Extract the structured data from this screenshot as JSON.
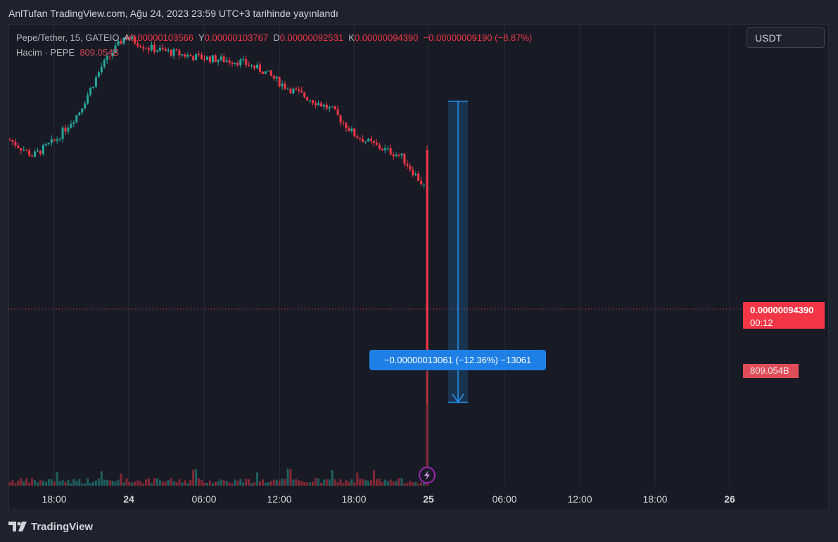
{
  "header": {
    "published_text": "AnlTufan TradingView.com, Ağu 24, 2023 23:59 UTC+3 tarihinde yayınlandı"
  },
  "legend": {
    "symbol": "Pepe/Tether, 15, GATEIO",
    "open_label": "A",
    "open_value": "0.00000103566",
    "high_label": "Y",
    "high_value": "0.00000103767",
    "low_label": "D",
    "low_value": "0.00000092531",
    "close_label": "K",
    "close_value": "0.00000094390",
    "change": "−0.00000009190 (−8.87%)",
    "volume_label": "Hacim · PEPE",
    "volume_value": "809.054B"
  },
  "currency_selector": "USDT",
  "price_tag": {
    "price": "0.00000094390",
    "countdown": "00:12"
  },
  "volume_tag": "809.054B",
  "measure_label": "−0.00000013061 (−12.36%) −13061",
  "brand": "TradingView",
  "colors": {
    "up": "#26a69a",
    "down": "#f23645",
    "measure": "#2196f3",
    "background": "#181b25",
    "grid": "#2a2e39"
  },
  "chart_data": {
    "type": "candlestick",
    "symbol": "Pepe/Tether",
    "interval": "15",
    "exchange": "GATEIO",
    "x_ticks": [
      "18:00",
      "24",
      "06:00",
      "12:00",
      "18:00",
      "25",
      "06:00",
      "12:00",
      "18:00",
      "26"
    ],
    "bold_ticks": [
      "24",
      "25",
      "26"
    ],
    "price_range": [
      8.9e-07,
      1.09e-06
    ],
    "approx_close_path": [
      1.04e-06,
      1.033e-06,
      1.04e-06,
      1.052e-06,
      1.072e-06,
      1.085e-06,
      1.08e-06,
      1.078e-06,
      1.076e-06,
      1.075e-06,
      1.074e-06,
      1.07e-06,
      1.063e-06,
      1.058e-06,
      1.053e-06,
      1.042e-06,
      1.037e-06,
      1.033e-06,
      1.02e-06,
      9.439e-07
    ],
    "last_candle": {
      "open": 1.03566e-06,
      "high": 1.03767e-06,
      "low": 9.2531e-07,
      "close": 9.439e-07
    },
    "measure": {
      "from_price": 1.05678e-06,
      "to_price": 9.2617e-07,
      "change_abs": "−0.00000013061",
      "change_pct": "−12.36%",
      "ticks": "−13061"
    },
    "last_volume": "809.054B"
  }
}
